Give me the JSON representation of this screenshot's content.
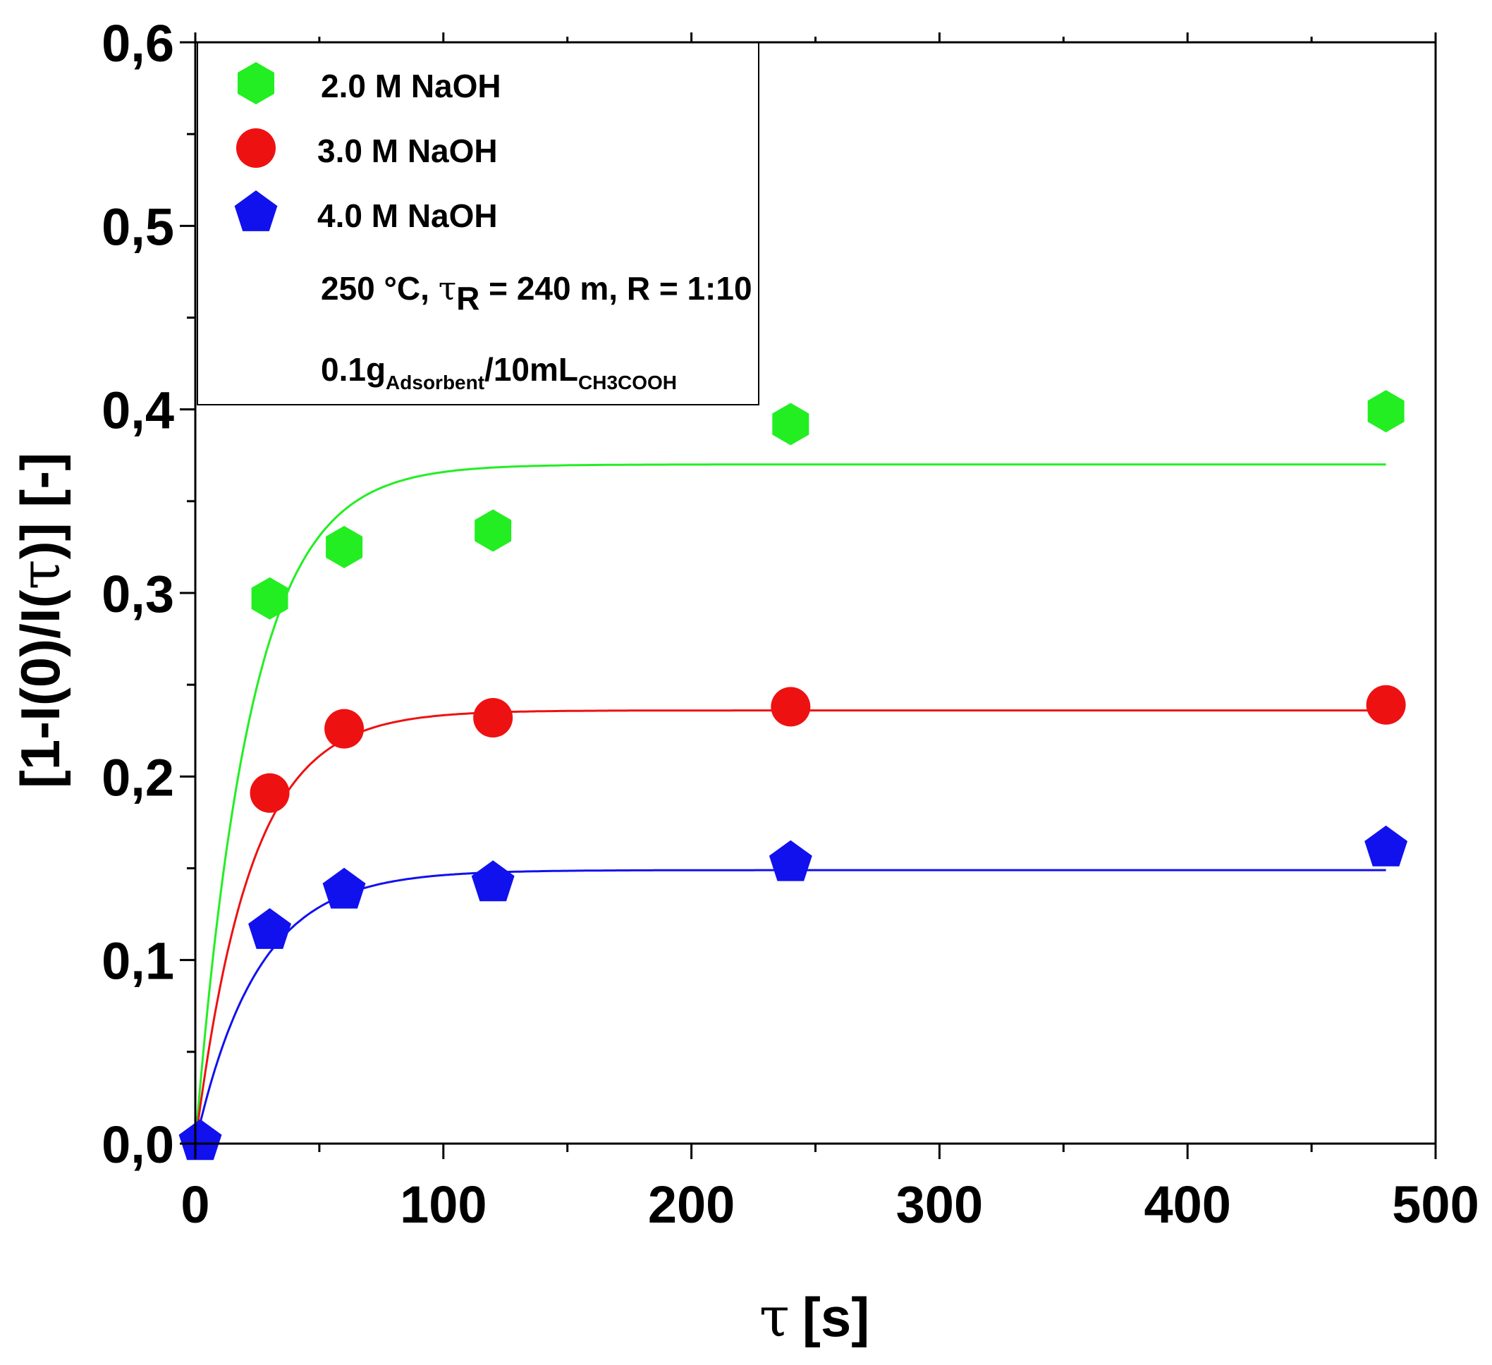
{
  "chart_data": {
    "type": "scatter",
    "title": "",
    "xlabel_symbol": "τ",
    "xlabel_unit": "[s]",
    "ylabel_prefix": "[1-I(0)/I(",
    "ylabel_symbol": "τ",
    "ylabel_suffix": ")] [-]",
    "xlim": [
      0,
      500
    ],
    "ylim": [
      0,
      0.6
    ],
    "x_ticks": [
      0,
      100,
      200,
      300,
      400,
      500
    ],
    "x_tick_labels": [
      "0",
      "100",
      "200",
      "300",
      "400",
      "500"
    ],
    "y_ticks": [
      0,
      0.1,
      0.2,
      0.3,
      0.4,
      0.5,
      0.6
    ],
    "y_tick_labels": [
      "0,0",
      "0,1",
      "0,2",
      "0,3",
      "0,4",
      "0,5",
      "0,6"
    ],
    "grid": false,
    "legend_position": "top-left",
    "series": [
      {
        "name": "2.0 M NaOH",
        "color": "#22ee22",
        "marker": "hexagon",
        "x": [
          30,
          60,
          120,
          240,
          480
        ],
        "y": [
          0.297,
          0.325,
          0.334,
          0.392,
          0.399
        ],
        "fit": {
          "a": 0.37,
          "k": 0.045
        }
      },
      {
        "name": "3.0 M NaOH",
        "color": "#ee1111",
        "marker": "circle",
        "x": [
          30,
          60,
          120,
          240,
          480
        ],
        "y": [
          0.191,
          0.226,
          0.232,
          0.238,
          0.239
        ],
        "fit": {
          "a": 0.236,
          "k": 0.045
        }
      },
      {
        "name": "4.0 M NaOH",
        "color": "#1111ee",
        "marker": "pentagon",
        "x": [
          2,
          30,
          60,
          120,
          240,
          480
        ],
        "y": [
          0.001,
          0.116,
          0.138,
          0.142,
          0.153,
          0.161
        ],
        "fit": {
          "a": 0.149,
          "k": 0.04
        }
      }
    ],
    "annotations": {
      "conditions_prefix": "250 °C, ",
      "conditions_symbol": "τ",
      "conditions_sub": "R",
      "conditions_suffix": " = 240 m, R = 1:10",
      "ratio_a": "0.1g",
      "ratio_a_sub": "Adsorbent",
      "ratio_b": "/10mL",
      "ratio_b_sub": "CH3COOH"
    }
  }
}
